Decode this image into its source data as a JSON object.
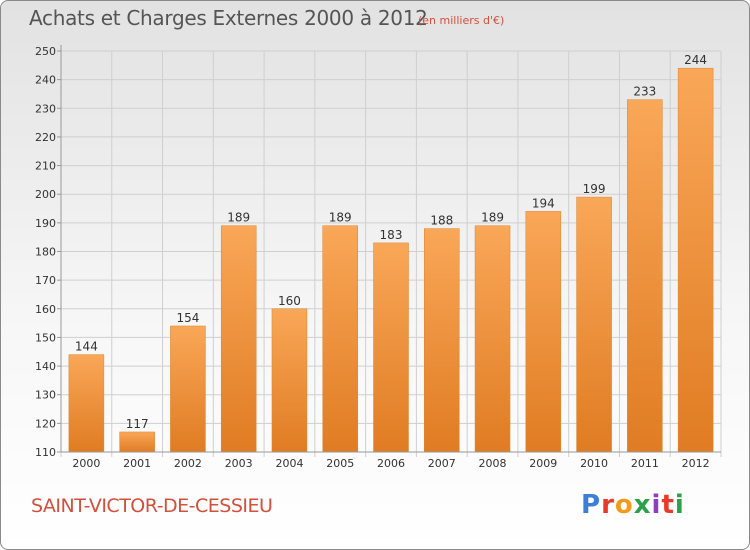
{
  "header": {
    "title": "Achats et Charges Externes 2000 à 2012",
    "subtitle": "(en milliers d'€)"
  },
  "footer": {
    "commune": "SAINT-VICTOR-DE-CESSIEU",
    "logo_text": "Proxiti",
    "logo_colors": [
      "#3b7fd6",
      "#e8392a",
      "#f29b1b",
      "#2ba14a",
      "#8d3fc4",
      "#e8392a",
      "#2ba14a"
    ]
  },
  "colors": {
    "bar_light": "#f9a758",
    "bar_dark": "#e07c23",
    "grid": "#cfcfcf",
    "axis": "#999999"
  },
  "chart_data": {
    "type": "bar",
    "title": "Achats et Charges Externes 2000 à 2012",
    "subtitle": "(en milliers d'€)",
    "categories": [
      "2000",
      "2001",
      "2002",
      "2003",
      "2004",
      "2005",
      "2006",
      "2007",
      "2008",
      "2009",
      "2010",
      "2011",
      "2012"
    ],
    "values": [
      144,
      117,
      154,
      189,
      160,
      189,
      183,
      188,
      189,
      194,
      199,
      233,
      244
    ],
    "ylim": [
      110,
      250
    ],
    "yticks": [
      110,
      120,
      130,
      140,
      150,
      160,
      170,
      180,
      190,
      200,
      210,
      220,
      230,
      240,
      250
    ],
    "grid": true,
    "xlabel": "",
    "ylabel": ""
  }
}
